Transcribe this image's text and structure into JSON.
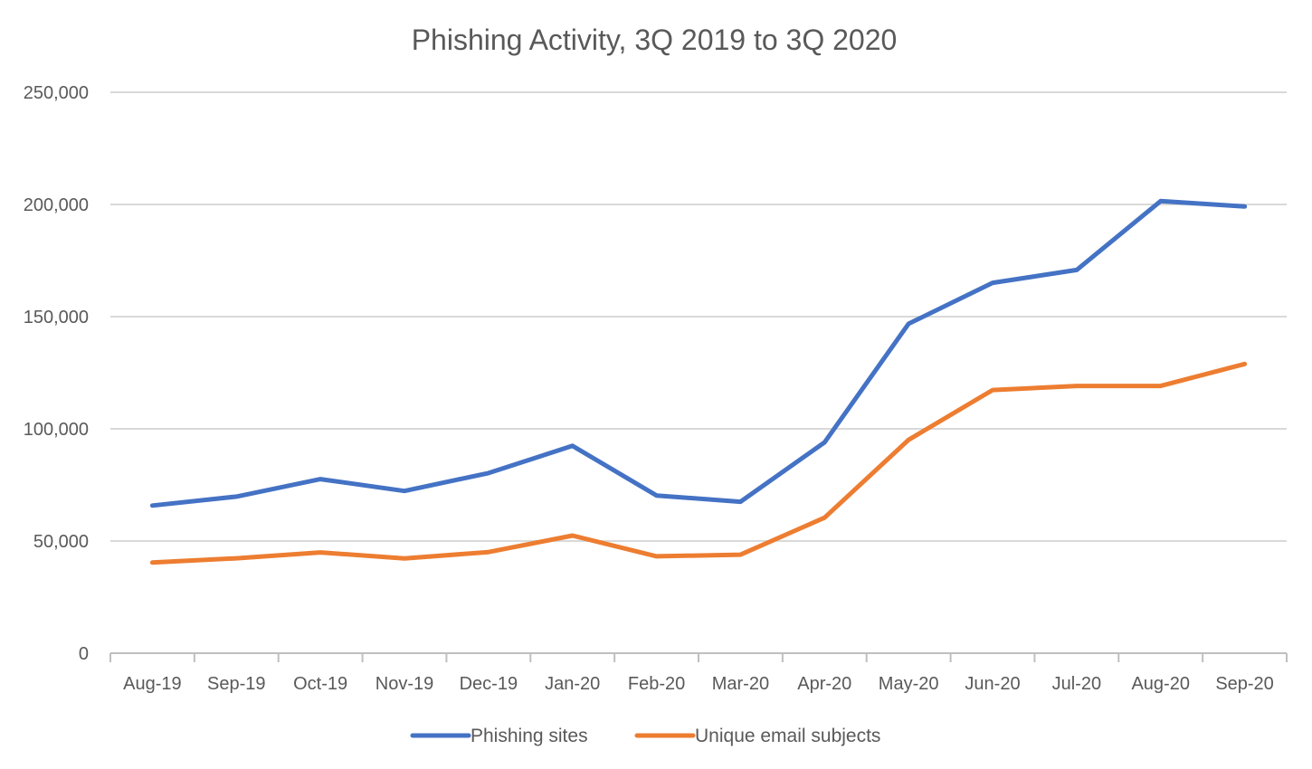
{
  "chart_data": {
    "type": "line",
    "title": "Phishing Activity, 3Q 2019 to 3Q 2020",
    "xlabel": "",
    "ylabel": "",
    "ylim": [
      0,
      250000
    ],
    "yticks": [
      0,
      50000,
      100000,
      150000,
      200000,
      250000
    ],
    "ytick_labels": [
      "0",
      "50,000",
      "100,000",
      "150,000",
      "200,000",
      "250,000"
    ],
    "grid": true,
    "legend_position": "bottom",
    "categories": [
      "Aug-19",
      "Sep-19",
      "Oct-19",
      "Nov-19",
      "Dec-19",
      "Jan-20",
      "Feb-20",
      "Mar-20",
      "Apr-20",
      "May-20",
      "Jun-20",
      "Jul-20",
      "Aug-20",
      "Sep-20"
    ],
    "series": [
      {
        "name": "Phishing sites",
        "color": "#4472c4",
        "values": [
          65800,
          69800,
          77600,
          72300,
          80300,
          92400,
          70300,
          67500,
          94000,
          146800,
          165100,
          170800,
          201500,
          199100
        ]
      },
      {
        "name": "Unique email subjects",
        "color": "#ed7d31",
        "values": [
          40400,
          42300,
          44900,
          42200,
          45100,
          52400,
          43200,
          43900,
          60400,
          95100,
          117300,
          119100,
          119100,
          128900
        ]
      }
    ]
  }
}
